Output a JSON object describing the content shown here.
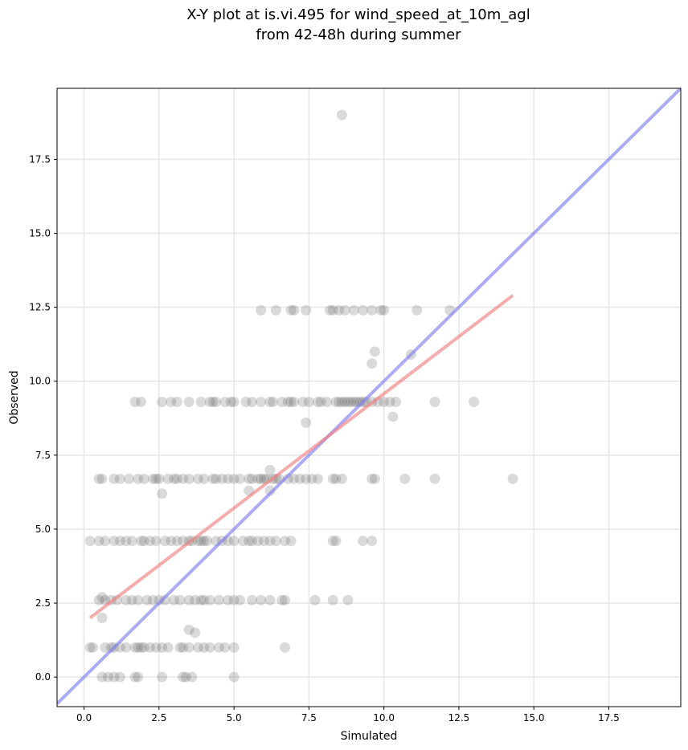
{
  "chart_data": {
    "type": "scatter",
    "title": "X-Y plot at is.vi.495 for wind_speed_at_10m_agl",
    "subtitle": "from 42-48h during summer",
    "xlabel": "Simulated",
    "ylabel": "Observed",
    "xlim": [
      -0.9,
      19.9
    ],
    "ylim": [
      -1.0,
      19.9
    ],
    "xticks": [
      "0.0",
      "2.5",
      "5.0",
      "7.5",
      "10.0",
      "12.5",
      "15.0",
      "17.5"
    ],
    "yticks": [
      "0.0",
      "2.5",
      "5.0",
      "7.5",
      "10.0",
      "12.5",
      "15.0",
      "17.5"
    ],
    "xtick_values": [
      0,
      2.5,
      5,
      7.5,
      10,
      12.5,
      15,
      17.5
    ],
    "ytick_values": [
      0,
      2.5,
      5,
      7.5,
      10,
      12.5,
      15,
      17.5
    ],
    "grid": true,
    "colors": {
      "points": "#555555",
      "fit_line": "#f08080",
      "one_to_one_line": "#8080f0",
      "grid": "#e6e6e6"
    },
    "lines": [
      {
        "role": "one-to-one",
        "x": [
          -0.9,
          19.9
        ],
        "y": [
          -0.9,
          19.9
        ]
      },
      {
        "role": "linear-fit",
        "x": [
          0.2,
          14.3
        ],
        "y": [
          2.0,
          12.9
        ]
      }
    ],
    "points": [
      [
        8.6,
        19.0
      ],
      [
        5.9,
        12.4
      ],
      [
        6.4,
        12.4
      ],
      [
        6.9,
        12.4
      ],
      [
        7.0,
        12.4
      ],
      [
        7.4,
        12.4
      ],
      [
        8.2,
        12.4
      ],
      [
        8.3,
        12.4
      ],
      [
        8.5,
        12.4
      ],
      [
        8.7,
        12.4
      ],
      [
        9.0,
        12.4
      ],
      [
        9.3,
        12.4
      ],
      [
        9.6,
        12.4
      ],
      [
        9.9,
        12.4
      ],
      [
        10.0,
        12.4
      ],
      [
        11.1,
        12.4
      ],
      [
        12.2,
        12.4
      ],
      [
        9.7,
        11.0
      ],
      [
        10.9,
        10.9
      ],
      [
        9.6,
        10.6
      ],
      [
        1.7,
        9.3
      ],
      [
        1.9,
        9.3
      ],
      [
        2.6,
        9.3
      ],
      [
        2.9,
        9.3
      ],
      [
        3.1,
        9.3
      ],
      [
        3.5,
        9.3
      ],
      [
        3.9,
        9.3
      ],
      [
        4.2,
        9.3
      ],
      [
        4.3,
        9.3
      ],
      [
        4.4,
        9.3
      ],
      [
        4.7,
        9.3
      ],
      [
        4.9,
        9.3
      ],
      [
        5.0,
        9.3
      ],
      [
        5.4,
        9.3
      ],
      [
        5.6,
        9.3
      ],
      [
        5.9,
        9.3
      ],
      [
        6.2,
        9.3
      ],
      [
        6.3,
        9.3
      ],
      [
        6.6,
        9.3
      ],
      [
        6.8,
        9.3
      ],
      [
        6.9,
        9.3
      ],
      [
        7.0,
        9.3
      ],
      [
        7.3,
        9.3
      ],
      [
        7.5,
        9.3
      ],
      [
        7.8,
        9.3
      ],
      [
        7.9,
        9.3
      ],
      [
        8.1,
        9.3
      ],
      [
        8.4,
        9.3
      ],
      [
        8.5,
        9.3
      ],
      [
        8.6,
        9.3
      ],
      [
        8.7,
        9.3
      ],
      [
        8.8,
        9.3
      ],
      [
        8.9,
        9.3
      ],
      [
        9.0,
        9.3
      ],
      [
        9.1,
        9.3
      ],
      [
        9.2,
        9.3
      ],
      [
        9.3,
        9.3
      ],
      [
        9.4,
        9.3
      ],
      [
        9.6,
        9.3
      ],
      [
        9.8,
        9.3
      ],
      [
        10.0,
        9.3
      ],
      [
        10.2,
        9.3
      ],
      [
        10.4,
        9.3
      ],
      [
        11.7,
        9.3
      ],
      [
        13.0,
        9.3
      ],
      [
        10.3,
        8.8
      ],
      [
        7.4,
        8.6
      ],
      [
        6.2,
        7.0
      ],
      [
        0.5,
        6.7
      ],
      [
        0.6,
        6.7
      ],
      [
        1.0,
        6.7
      ],
      [
        1.2,
        6.7
      ],
      [
        1.5,
        6.7
      ],
      [
        1.8,
        6.7
      ],
      [
        2.0,
        6.7
      ],
      [
        2.3,
        6.7
      ],
      [
        2.4,
        6.7
      ],
      [
        2.5,
        6.7
      ],
      [
        2.8,
        6.7
      ],
      [
        3.0,
        6.7
      ],
      [
        3.1,
        6.7
      ],
      [
        3.3,
        6.7
      ],
      [
        3.5,
        6.7
      ],
      [
        3.8,
        6.7
      ],
      [
        4.0,
        6.7
      ],
      [
        4.3,
        6.7
      ],
      [
        4.4,
        6.7
      ],
      [
        4.6,
        6.7
      ],
      [
        4.8,
        6.7
      ],
      [
        5.0,
        6.7
      ],
      [
        5.2,
        6.7
      ],
      [
        5.5,
        6.7
      ],
      [
        5.6,
        6.7
      ],
      [
        5.8,
        6.7
      ],
      [
        5.9,
        6.7
      ],
      [
        6.0,
        6.7
      ],
      [
        6.1,
        6.7
      ],
      [
        6.3,
        6.7
      ],
      [
        6.4,
        6.7
      ],
      [
        6.5,
        6.7
      ],
      [
        6.8,
        6.7
      ],
      [
        7.0,
        6.7
      ],
      [
        7.2,
        6.7
      ],
      [
        7.4,
        6.7
      ],
      [
        7.6,
        6.7
      ],
      [
        7.8,
        6.7
      ],
      [
        8.3,
        6.7
      ],
      [
        8.4,
        6.7
      ],
      [
        8.6,
        6.7
      ],
      [
        9.6,
        6.7
      ],
      [
        9.7,
        6.7
      ],
      [
        10.7,
        6.7
      ],
      [
        11.7,
        6.7
      ],
      [
        14.3,
        6.7
      ],
      [
        5.5,
        6.3
      ],
      [
        6.2,
        6.3
      ],
      [
        2.6,
        6.2
      ],
      [
        0.2,
        4.6
      ],
      [
        0.5,
        4.6
      ],
      [
        0.7,
        4.6
      ],
      [
        1.0,
        4.6
      ],
      [
        1.2,
        4.6
      ],
      [
        1.4,
        4.6
      ],
      [
        1.6,
        4.6
      ],
      [
        1.9,
        4.6
      ],
      [
        2.0,
        4.6
      ],
      [
        2.2,
        4.6
      ],
      [
        2.4,
        4.6
      ],
      [
        2.7,
        4.6
      ],
      [
        2.9,
        4.6
      ],
      [
        3.1,
        4.6
      ],
      [
        3.3,
        4.6
      ],
      [
        3.5,
        4.6
      ],
      [
        3.6,
        4.6
      ],
      [
        3.8,
        4.6
      ],
      [
        3.9,
        4.6
      ],
      [
        4.0,
        4.6
      ],
      [
        4.1,
        4.6
      ],
      [
        4.4,
        4.6
      ],
      [
        4.6,
        4.6
      ],
      [
        4.8,
        4.6
      ],
      [
        5.0,
        4.6
      ],
      [
        5.3,
        4.6
      ],
      [
        5.5,
        4.6
      ],
      [
        5.6,
        4.6
      ],
      [
        5.8,
        4.6
      ],
      [
        6.0,
        4.6
      ],
      [
        6.2,
        4.6
      ],
      [
        6.4,
        4.6
      ],
      [
        6.7,
        4.6
      ],
      [
        6.9,
        4.6
      ],
      [
        8.3,
        4.6
      ],
      [
        8.4,
        4.6
      ],
      [
        9.3,
        4.6
      ],
      [
        9.6,
        4.6
      ],
      [
        0.5,
        2.6
      ],
      [
        0.7,
        2.6
      ],
      [
        0.9,
        2.6
      ],
      [
        1.1,
        2.6
      ],
      [
        1.4,
        2.6
      ],
      [
        1.6,
        2.6
      ],
      [
        1.8,
        2.6
      ],
      [
        2.1,
        2.6
      ],
      [
        2.3,
        2.6
      ],
      [
        2.5,
        2.6
      ],
      [
        2.7,
        2.6
      ],
      [
        3.0,
        2.6
      ],
      [
        3.2,
        2.6
      ],
      [
        3.5,
        2.6
      ],
      [
        3.7,
        2.6
      ],
      [
        3.9,
        2.6
      ],
      [
        4.0,
        2.6
      ],
      [
        4.2,
        2.6
      ],
      [
        4.5,
        2.6
      ],
      [
        4.8,
        2.6
      ],
      [
        5.0,
        2.6
      ],
      [
        5.2,
        2.6
      ],
      [
        5.6,
        2.6
      ],
      [
        5.9,
        2.6
      ],
      [
        6.2,
        2.6
      ],
      [
        6.6,
        2.6
      ],
      [
        6.7,
        2.6
      ],
      [
        7.7,
        2.6
      ],
      [
        8.3,
        2.6
      ],
      [
        8.8,
        2.6
      ],
      [
        0.6,
        2.7
      ],
      [
        0.6,
        2.0
      ],
      [
        3.5,
        1.6
      ],
      [
        3.7,
        1.5
      ],
      [
        0.2,
        1.0
      ],
      [
        0.3,
        1.0
      ],
      [
        0.7,
        1.0
      ],
      [
        0.9,
        1.0
      ],
      [
        1.0,
        1.0
      ],
      [
        1.2,
        1.0
      ],
      [
        1.4,
        1.0
      ],
      [
        1.7,
        1.0
      ],
      [
        1.8,
        1.0
      ],
      [
        1.9,
        1.0
      ],
      [
        2.0,
        1.0
      ],
      [
        2.2,
        1.0
      ],
      [
        2.4,
        1.0
      ],
      [
        2.6,
        1.0
      ],
      [
        2.8,
        1.0
      ],
      [
        3.2,
        1.0
      ],
      [
        3.3,
        1.0
      ],
      [
        3.5,
        1.0
      ],
      [
        3.8,
        1.0
      ],
      [
        4.0,
        1.0
      ],
      [
        4.2,
        1.0
      ],
      [
        4.5,
        1.0
      ],
      [
        4.7,
        1.0
      ],
      [
        5.0,
        1.0
      ],
      [
        6.7,
        1.0
      ],
      [
        0.6,
        0.0
      ],
      [
        0.8,
        0.0
      ],
      [
        1.0,
        0.0
      ],
      [
        1.2,
        0.0
      ],
      [
        1.7,
        0.0
      ],
      [
        1.8,
        0.0
      ],
      [
        2.6,
        0.0
      ],
      [
        3.3,
        0.0
      ],
      [
        3.4,
        0.0
      ],
      [
        3.6,
        0.0
      ],
      [
        5.0,
        0.0
      ]
    ]
  }
}
